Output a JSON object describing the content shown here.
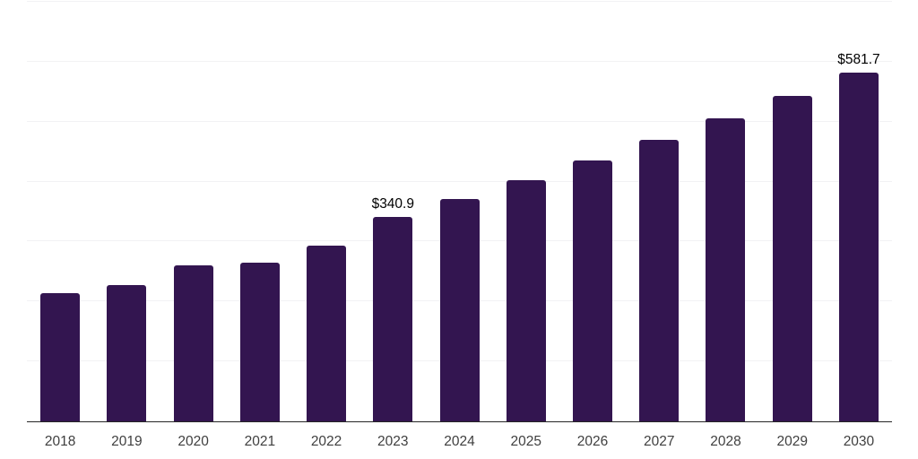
{
  "page": {
    "background_color": "#ffffff"
  },
  "chart_data": {
    "type": "bar",
    "categories": [
      "2018",
      "2019",
      "2020",
      "2021",
      "2022",
      "2023",
      "2024",
      "2025",
      "2026",
      "2027",
      "2028",
      "2029",
      "2030"
    ],
    "values": [
      214.2,
      227.3,
      260.2,
      264.9,
      292.6,
      340.9,
      371.7,
      402.2,
      434.6,
      470.4,
      505.8,
      543.1,
      581.7
    ],
    "data_labels": {
      "2023": "$340.9",
      "2030": "$581.7"
    },
    "ylim": [
      0,
      700
    ],
    "grid_interval": 100,
    "grid": true,
    "legend": false,
    "y_tick_labels_visible": false,
    "colors": {
      "bar": "#331550",
      "gridline": "#f2f2f4",
      "axis_line": "#262626",
      "tick_label": "#3f3f3f",
      "data_label": "#000000"
    }
  }
}
